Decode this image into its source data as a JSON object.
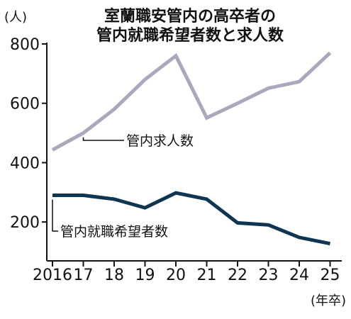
{
  "chart_data": {
    "type": "line",
    "title": [
      "室蘭職安管内の高卒者の",
      "管内就職希望者数と求人数"
    ],
    "y_unit": "(人)",
    "x_unit": "(年卒)",
    "categories": [
      "2016",
      "17",
      "18",
      "19",
      "20",
      "21",
      "22",
      "23",
      "24",
      "25"
    ],
    "ylim": [
      100,
      800
    ],
    "yticks": [
      200,
      400,
      600,
      800
    ],
    "grid": false,
    "series": [
      {
        "name": "管内求人数",
        "color": "#aaa8bd",
        "values": [
          443,
          500,
          580,
          680,
          760,
          551,
          600,
          651,
          673,
          770
        ]
      },
      {
        "name": "管内就職希望者数",
        "color": "#0e3552",
        "values": [
          290,
          290,
          277,
          248,
          298,
          277,
          197,
          190,
          148,
          127
        ]
      }
    ]
  }
}
